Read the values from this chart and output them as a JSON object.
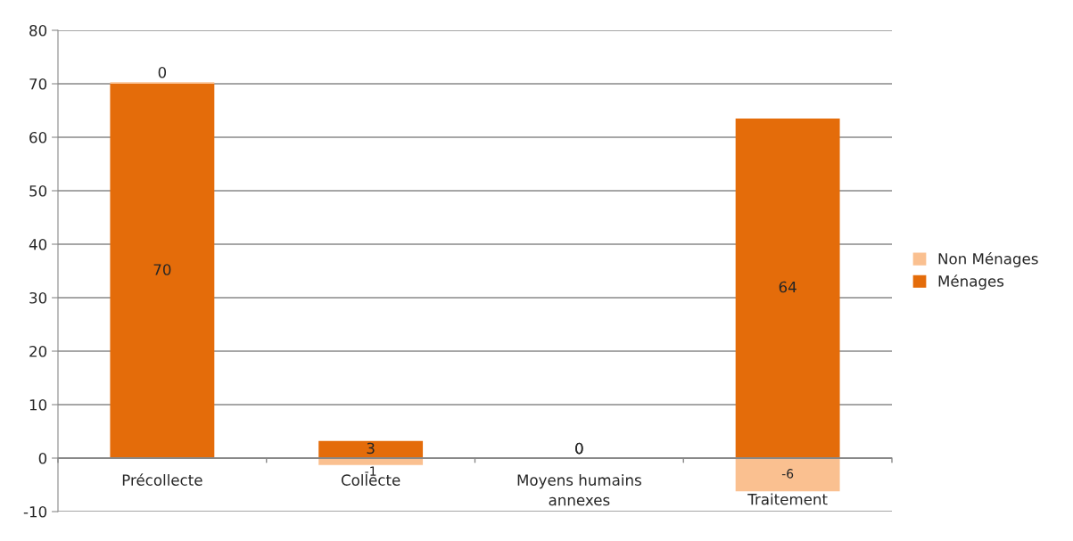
{
  "chart_data": {
    "type": "bar",
    "stacked": true,
    "categories": [
      "Précollecte",
      "Collecte",
      "Moyens humains\nannexes",
      "Traitement"
    ],
    "series": [
      {
        "name": "Ménages",
        "color": "#e46c0a",
        "values": [
          70,
          3.2,
          0,
          63.5
        ],
        "value_labels": [
          "70",
          "3",
          "0",
          "64"
        ]
      },
      {
        "name": "Non Ménages",
        "color": "#fac090",
        "values": [
          0.3,
          -1.3,
          0,
          -6.2
        ],
        "value_labels": [
          "0",
          "-1",
          "0",
          "-6"
        ]
      }
    ],
    "ylim": [
      -10,
      80
    ],
    "yticks": [
      -10,
      0,
      10,
      20,
      30,
      40,
      50,
      60,
      70,
      80
    ],
    "grid": "y",
    "legend": "right"
  }
}
